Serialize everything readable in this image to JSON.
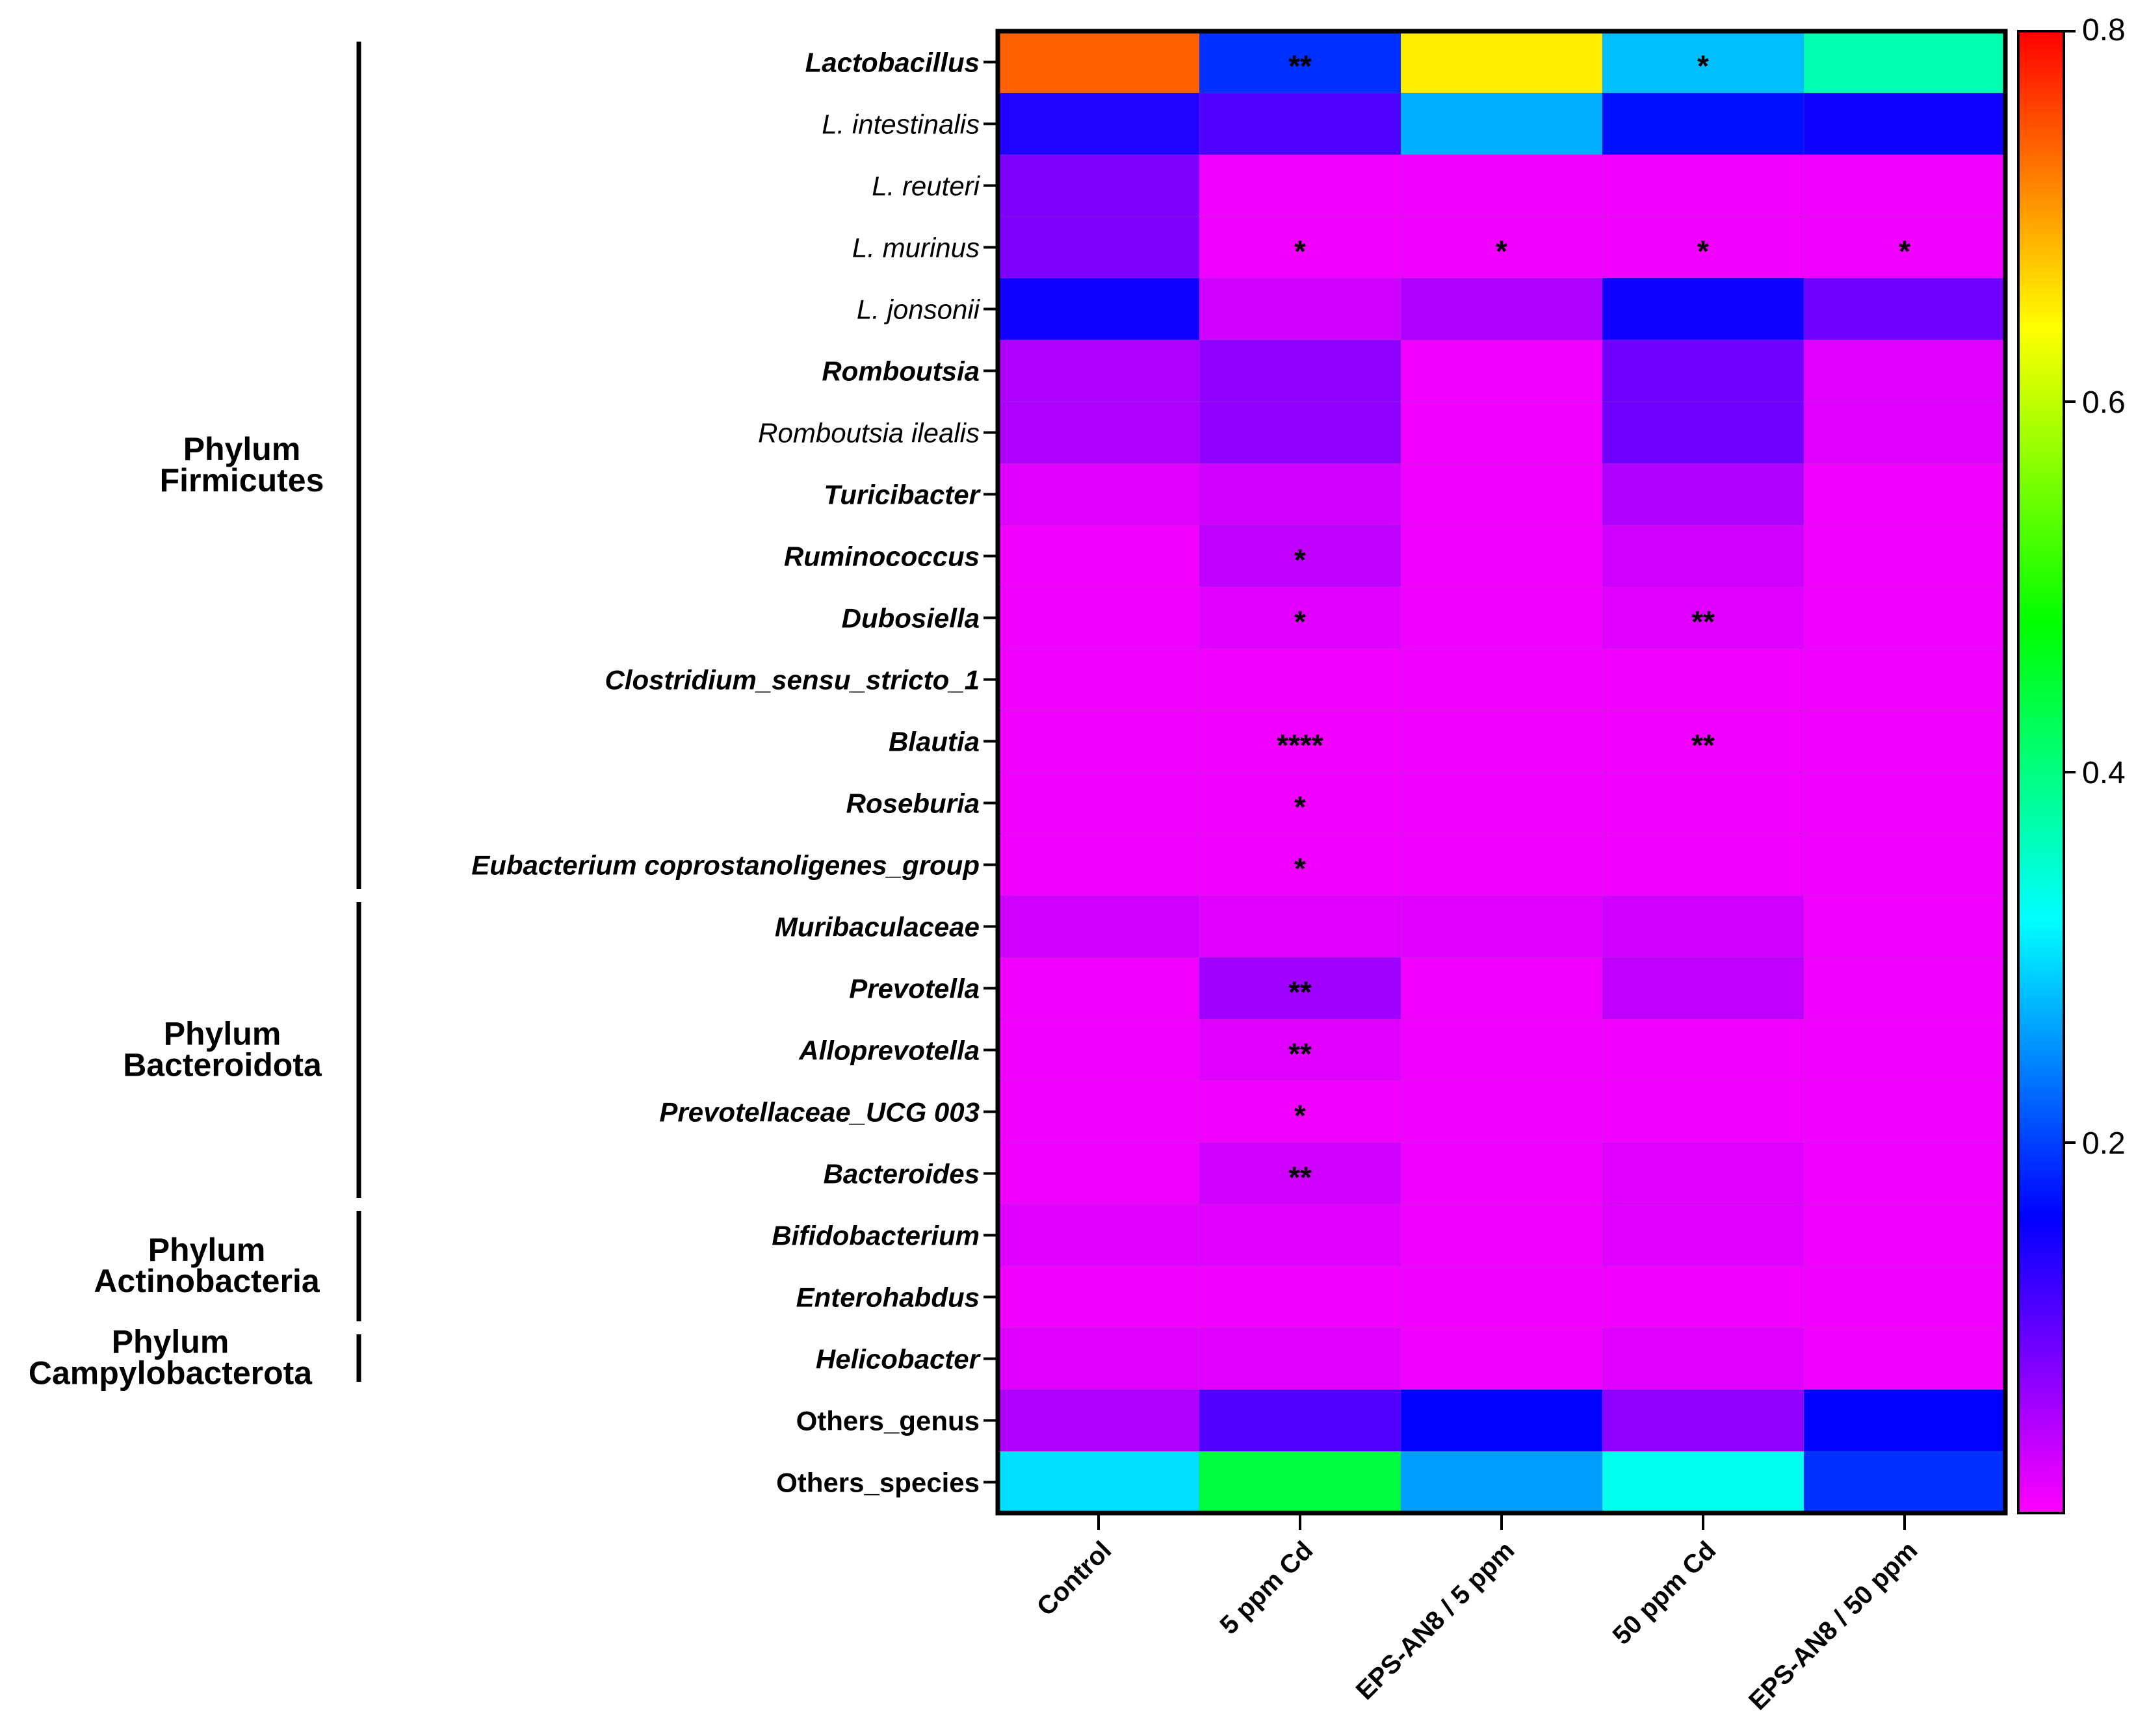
{
  "chart_data": {
    "type": "heatmap",
    "title": "",
    "xlabel": "",
    "ylabel": "",
    "columns": [
      "Control",
      "5 ppm Cd",
      "EPS-AN8 / 5 ppm",
      "50 ppm Cd",
      "EPS-AN8 / 50 ppm"
    ],
    "rows": [
      {
        "label": "Lactobacillus",
        "style": "bold-italic",
        "values": [
          0.74,
          0.19,
          0.65,
          0.28,
          0.37
        ],
        "stars": [
          "",
          "**",
          "",
          "*",
          ""
        ]
      },
      {
        "label": "L. intestinalis",
        "style": "italic",
        "values": [
          0.14,
          0.11,
          0.27,
          0.17,
          0.15
        ],
        "stars": [
          "",
          "",
          "",
          "",
          ""
        ]
      },
      {
        "label": "L. reuteri",
        "style": "italic",
        "values": [
          0.08,
          0.01,
          0.01,
          0.01,
          0.01
        ],
        "stars": [
          "",
          "",
          "",
          "",
          ""
        ]
      },
      {
        "label": "L. murinus",
        "style": "italic",
        "values": [
          0.08,
          0.01,
          0.01,
          0.01,
          0.01
        ],
        "stars": [
          "",
          "*",
          "*",
          "*",
          "*"
        ]
      },
      {
        "label": "L. jonsonii",
        "style": "italic",
        "values": [
          0.15,
          0.03,
          0.05,
          0.15,
          0.09
        ],
        "stars": [
          "",
          "",
          "",
          "",
          ""
        ]
      },
      {
        "label": "Romboutsia",
        "style": "bold-italic",
        "values": [
          0.05,
          0.07,
          0.01,
          0.09,
          0.02
        ],
        "stars": [
          "",
          "",
          "",
          "",
          ""
        ]
      },
      {
        "label": "Romboutsia ilealis",
        "style": "italic",
        "values": [
          0.05,
          0.07,
          0.01,
          0.09,
          0.02
        ],
        "stars": [
          "",
          "",
          "",
          "",
          ""
        ]
      },
      {
        "label": "Turicibacter",
        "style": "bold-italic",
        "values": [
          0.02,
          0.03,
          0.01,
          0.05,
          0.01
        ],
        "stars": [
          "",
          "",
          "",
          "",
          ""
        ]
      },
      {
        "label": "Ruminococcus",
        "style": "bold-italic",
        "values": [
          0.01,
          0.04,
          0.01,
          0.03,
          0.01
        ],
        "stars": [
          "",
          "*",
          "",
          "",
          ""
        ]
      },
      {
        "label": "Dubosiella",
        "style": "bold-italic",
        "values": [
          0.01,
          0.02,
          0.01,
          0.02,
          0.01
        ],
        "stars": [
          "",
          "*",
          "",
          "**",
          ""
        ]
      },
      {
        "label": "Clostridium_sensu_stricto_1",
        "style": "bold-italic",
        "values": [
          0.01,
          0.01,
          0.01,
          0.01,
          0.01
        ],
        "stars": [
          "",
          "",
          "",
          "",
          ""
        ]
      },
      {
        "label": "Blautia",
        "style": "bold-italic",
        "values": [
          0.01,
          0.01,
          0.01,
          0.01,
          0.01
        ],
        "stars": [
          "",
          "****",
          "",
          "**",
          ""
        ]
      },
      {
        "label": "Roseburia",
        "style": "bold-italic",
        "values": [
          0.01,
          0.01,
          0.01,
          0.01,
          0.01
        ],
        "stars": [
          "",
          "*",
          "",
          "",
          ""
        ]
      },
      {
        "label": "Eubacterium coprostanoligenes_group",
        "style": "bold-italic",
        "values": [
          0.01,
          0.01,
          0.01,
          0.01,
          0.01
        ],
        "stars": [
          "",
          "*",
          "",
          "",
          ""
        ]
      },
      {
        "label": "Muribaculaceae",
        "style": "bold-italic",
        "values": [
          0.03,
          0.02,
          0.02,
          0.03,
          0.01
        ],
        "stars": [
          "",
          "",
          "",
          "",
          ""
        ]
      },
      {
        "label": "Prevotella",
        "style": "bold-italic",
        "values": [
          0.01,
          0.06,
          0.01,
          0.04,
          0.01
        ],
        "stars": [
          "",
          "**",
          "",
          "",
          ""
        ]
      },
      {
        "label": "Alloprevotella",
        "style": "bold-italic",
        "values": [
          0.01,
          0.02,
          0.01,
          0.01,
          0.01
        ],
        "stars": [
          "",
          "**",
          "",
          "",
          ""
        ]
      },
      {
        "label": "Prevotellaceae_UCG 003",
        "style": "bold-italic",
        "values": [
          0.01,
          0.01,
          0.01,
          0.01,
          0.01
        ],
        "stars": [
          "",
          "*",
          "",
          "",
          ""
        ]
      },
      {
        "label": "Bacteroides",
        "style": "bold-italic",
        "values": [
          0.01,
          0.03,
          0.01,
          0.02,
          0.01
        ],
        "stars": [
          "",
          "**",
          "",
          "",
          ""
        ]
      },
      {
        "label": "Bifidobacterium",
        "style": "bold-italic",
        "values": [
          0.02,
          0.02,
          0.01,
          0.02,
          0.01
        ],
        "stars": [
          "",
          "",
          "",
          "",
          ""
        ]
      },
      {
        "label": "Enterohabdus",
        "style": "bold-italic",
        "values": [
          0.01,
          0.01,
          0.01,
          0.01,
          0.01
        ],
        "stars": [
          "",
          "",
          "",
          "",
          ""
        ]
      },
      {
        "label": "Helicobacter",
        "style": "bold-italic",
        "values": [
          0.02,
          0.02,
          0.01,
          0.02,
          0.01
        ],
        "stars": [
          "",
          "",
          "",
          "",
          ""
        ]
      },
      {
        "label": "Others_genus",
        "style": "bold",
        "values": [
          0.05,
          0.11,
          0.16,
          0.07,
          0.16
        ],
        "stars": [
          "",
          "",
          "",
          "",
          ""
        ]
      },
      {
        "label": "Others_species",
        "style": "bold",
        "values": [
          0.3,
          0.44,
          0.26,
          0.33,
          0.19
        ],
        "stars": [
          "",
          "",
          "",
          "",
          ""
        ]
      }
    ],
    "phyla": [
      {
        "line1": "Phylum",
        "line2": "Firmicutes",
        "row_start": 0,
        "row_end": 13
      },
      {
        "line1": "Phylum",
        "line2": "Bacteroidota",
        "row_start": 14,
        "row_end": 18
      },
      {
        "line1": "Phylum",
        "line2": "Actinobacteria",
        "row_start": 19,
        "row_end": 20
      },
      {
        "line1": "Phylum",
        "line2": "Campylobacterota",
        "row_start": 21,
        "row_end": 21
      }
    ],
    "colorbar": {
      "range": [
        0,
        0.8
      ],
      "ticks": [
        0.2,
        0.4,
        0.6,
        0.8
      ],
      "tick_labels": [
        "0.2",
        "0.4",
        "0.6",
        "0.8"
      ],
      "colormap": [
        "#ff00ff",
        "#0000ff",
        "#00ffff",
        "#00ff00",
        "#ffff00",
        "#ff0000"
      ]
    }
  }
}
